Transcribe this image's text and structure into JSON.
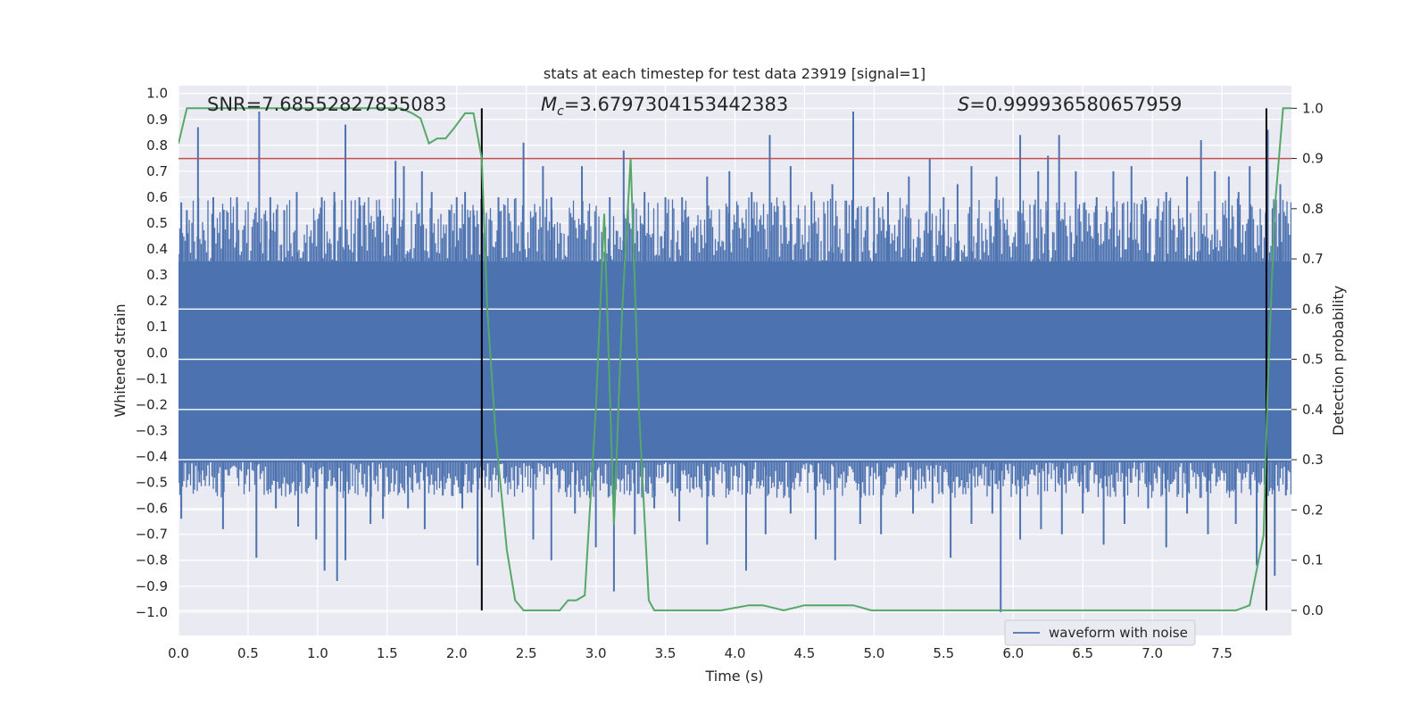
{
  "chart_data": {
    "type": "line",
    "title": "stats at each timestep for test data 23919 [signal=1]",
    "xlabel": "Time (s)",
    "ylabel": "Whitened strain",
    "y2label": "Detection probability",
    "xlim": [
      0.0,
      8.0
    ],
    "ylim": [
      -1.09,
      1.03
    ],
    "y2lim": [
      -0.05,
      1.045
    ],
    "xticks": [
      0.0,
      0.5,
      1.0,
      1.5,
      2.0,
      2.5,
      3.0,
      3.5,
      4.0,
      4.5,
      5.0,
      5.5,
      6.0,
      6.5,
      7.0,
      7.5
    ],
    "xtick_labels": [
      "0.0",
      "0.5",
      "1.0",
      "1.5",
      "2.0",
      "2.5",
      "3.0",
      "3.5",
      "4.0",
      "4.5",
      "5.0",
      "5.5",
      "6.0",
      "6.5",
      "7.0",
      "7.5"
    ],
    "yticks": [
      1.0,
      0.9,
      0.8,
      0.7,
      0.6,
      0.5,
      0.4,
      0.3,
      0.2,
      0.1,
      0.0,
      -0.1,
      -0.2,
      -0.3,
      -0.4,
      -0.5,
      -0.6,
      -0.7,
      -0.8,
      -0.9,
      -1.0
    ],
    "ytick_labels": [
      "1.0",
      "0.9",
      "0.8",
      "0.7",
      "0.6",
      "0.5",
      "0.4",
      "0.3",
      "0.2",
      "0.1",
      "0.0",
      "−0.1",
      "−0.2",
      "−0.3",
      "−0.4",
      "−0.5",
      "−0.6",
      "−0.7",
      "−0.8",
      "−0.9",
      "−1.0"
    ],
    "y2ticks": [
      1.0,
      0.9,
      0.8,
      0.7,
      0.6,
      0.5,
      0.4,
      0.3,
      0.2,
      0.1,
      0.0
    ],
    "y2tick_labels": [
      "1.0",
      "0.9",
      "0.8",
      "0.7",
      "0.6",
      "0.5",
      "0.4",
      "0.3",
      "0.2",
      "0.1",
      "0.0"
    ],
    "grid": true,
    "annotations": {
      "snr": "SNR=7.68552827835083",
      "mc_symbol": "M",
      "mc_sub": "c",
      "mc_value": "=3.6797304153442383",
      "s_symbol": "S",
      "s_value": "=0.999936580657959"
    },
    "threshold_line": {
      "y": 0.9,
      "axis": "right",
      "color": "#c44e52"
    },
    "vertical_markers": [
      2.18,
      7.82
    ],
    "series": [
      {
        "name": "waveform with noise",
        "axis": "left",
        "color": "#4c72b0",
        "band_upper": 0.35,
        "band_lower": -0.42,
        "spikes_up": [
          [
            0.02,
            0.58
          ],
          [
            0.06,
            0.55
          ],
          [
            0.14,
            0.87
          ],
          [
            0.25,
            0.6
          ],
          [
            0.32,
            0.55
          ],
          [
            0.42,
            0.6
          ],
          [
            0.58,
            0.93
          ],
          [
            0.66,
            0.6
          ],
          [
            0.76,
            0.55
          ],
          [
            0.85,
            0.62
          ],
          [
            1.03,
            0.6
          ],
          [
            1.12,
            0.62
          ],
          [
            1.2,
            0.88
          ],
          [
            1.3,
            0.6
          ],
          [
            1.45,
            0.55
          ],
          [
            1.56,
            0.74
          ],
          [
            1.62,
            0.72
          ],
          [
            1.75,
            0.7
          ],
          [
            1.82,
            0.62
          ],
          [
            1.95,
            0.55
          ],
          [
            2.0,
            0.6
          ],
          [
            2.06,
            0.62
          ],
          [
            2.12,
            0.55
          ],
          [
            2.3,
            0.6
          ],
          [
            2.48,
            0.81
          ],
          [
            2.62,
            0.72
          ],
          [
            2.68,
            0.6
          ],
          [
            2.9,
            0.72
          ],
          [
            3.1,
            0.6
          ],
          [
            3.2,
            0.78
          ],
          [
            3.35,
            0.62
          ],
          [
            3.5,
            0.6
          ],
          [
            3.62,
            0.6
          ],
          [
            3.8,
            0.68
          ],
          [
            3.96,
            0.7
          ],
          [
            4.12,
            0.62
          ],
          [
            4.25,
            0.84
          ],
          [
            4.4,
            0.72
          ],
          [
            4.55,
            0.62
          ],
          [
            4.7,
            0.65
          ],
          [
            4.85,
            0.93
          ],
          [
            5.0,
            0.6
          ],
          [
            5.1,
            0.62
          ],
          [
            5.25,
            0.68
          ],
          [
            5.4,
            0.75
          ],
          [
            5.5,
            0.6
          ],
          [
            5.6,
            0.65
          ],
          [
            5.7,
            0.72
          ],
          [
            5.88,
            0.68
          ],
          [
            6.05,
            0.84
          ],
          [
            6.18,
            0.7
          ],
          [
            6.25,
            0.76
          ],
          [
            6.33,
            0.84
          ],
          [
            6.45,
            0.7
          ],
          [
            6.6,
            0.6
          ],
          [
            6.72,
            0.7
          ],
          [
            6.85,
            0.72
          ],
          [
            6.95,
            0.6
          ],
          [
            7.1,
            0.62
          ],
          [
            7.25,
            0.68
          ],
          [
            7.35,
            0.82
          ],
          [
            7.45,
            0.7
          ],
          [
            7.55,
            0.68
          ],
          [
            7.62,
            0.62
          ],
          [
            7.7,
            0.72
          ],
          [
            7.83,
            0.86
          ],
          [
            7.92,
            0.65
          ]
        ],
        "spikes_down": [
          [
            0.02,
            -0.64
          ],
          [
            0.15,
            -0.5
          ],
          [
            0.32,
            -0.68
          ],
          [
            0.56,
            -0.79
          ],
          [
            0.7,
            -0.6
          ],
          [
            0.86,
            -0.67
          ],
          [
            0.99,
            -0.72
          ],
          [
            1.05,
            -0.84
          ],
          [
            1.14,
            -0.88
          ],
          [
            1.2,
            -0.8
          ],
          [
            1.38,
            -0.66
          ],
          [
            1.47,
            -0.64
          ],
          [
            1.65,
            -0.6
          ],
          [
            1.77,
            -0.68
          ],
          [
            1.9,
            -0.55
          ],
          [
            2.04,
            -0.6
          ],
          [
            2.15,
            -0.82
          ],
          [
            2.35,
            -0.5
          ],
          [
            2.55,
            -0.72
          ],
          [
            2.68,
            -0.8
          ],
          [
            2.85,
            -0.62
          ],
          [
            3.0,
            -0.75
          ],
          [
            3.13,
            -0.92
          ],
          [
            3.28,
            -0.7
          ],
          [
            3.42,
            -0.6
          ],
          [
            3.6,
            -0.65
          ],
          [
            3.8,
            -0.74
          ],
          [
            4.08,
            -0.84
          ],
          [
            4.22,
            -0.7
          ],
          [
            4.4,
            -0.62
          ],
          [
            4.58,
            -0.72
          ],
          [
            4.72,
            -0.8
          ],
          [
            4.9,
            -0.66
          ],
          [
            5.05,
            -0.7
          ],
          [
            5.28,
            -0.62
          ],
          [
            5.42,
            -0.58
          ],
          [
            5.55,
            -0.79
          ],
          [
            5.7,
            -0.66
          ],
          [
            5.85,
            -0.62
          ],
          [
            5.91,
            -1.0
          ],
          [
            6.05,
            -0.72
          ],
          [
            6.2,
            -0.68
          ],
          [
            6.35,
            -0.7
          ],
          [
            6.5,
            -0.62
          ],
          [
            6.65,
            -0.74
          ],
          [
            6.8,
            -0.66
          ],
          [
            6.97,
            -0.6
          ],
          [
            7.1,
            -0.75
          ],
          [
            7.25,
            -0.62
          ],
          [
            7.4,
            -0.7
          ],
          [
            7.6,
            -0.66
          ],
          [
            7.75,
            -0.82
          ],
          [
            7.88,
            -0.86
          ],
          [
            7.96,
            -0.55
          ]
        ]
      },
      {
        "name": "",
        "axis": "right",
        "color": "#55a868",
        "x": [
          0.0,
          0.06,
          0.2,
          0.4,
          0.6,
          0.8,
          1.0,
          1.2,
          1.4,
          1.6,
          1.68,
          1.74,
          1.8,
          1.86,
          1.92,
          1.98,
          2.06,
          2.12,
          2.18,
          2.22,
          2.28,
          2.36,
          2.42,
          2.48,
          2.58,
          2.66,
          2.74,
          2.8,
          2.86,
          2.92,
          3.0,
          3.06,
          3.13,
          3.19,
          3.25,
          3.31,
          3.38,
          3.42,
          3.5,
          3.7,
          3.9,
          4.1,
          4.2,
          4.35,
          4.5,
          4.6,
          4.75,
          4.85,
          4.98,
          5.1,
          5.3,
          5.6,
          5.8,
          5.95,
          6.2,
          6.5,
          6.8,
          7.1,
          7.4,
          7.6,
          7.7,
          7.8,
          7.83,
          7.88,
          7.94,
          8.0
        ],
        "y": [
          0.93,
          1.0,
          1.0,
          1.0,
          1.0,
          1.0,
          1.0,
          1.0,
          1.0,
          1.0,
          0.99,
          0.98,
          0.93,
          0.94,
          0.94,
          0.96,
          0.99,
          0.99,
          0.9,
          0.6,
          0.35,
          0.12,
          0.02,
          0.0,
          0.0,
          0.0,
          0.0,
          0.02,
          0.02,
          0.03,
          0.4,
          0.79,
          0.17,
          0.6,
          0.9,
          0.4,
          0.02,
          0.0,
          0.0,
          0.0,
          0.0,
          0.01,
          0.01,
          0.0,
          0.01,
          0.01,
          0.01,
          0.01,
          0.0,
          0.0,
          0.0,
          0.0,
          0.0,
          0.0,
          0.0,
          0.0,
          0.0,
          0.0,
          0.0,
          0.0,
          0.01,
          0.15,
          0.45,
          0.8,
          1.0,
          1.0
        ]
      }
    ],
    "legend": {
      "position": "lower-right",
      "entries": [
        "waveform with noise"
      ]
    }
  }
}
